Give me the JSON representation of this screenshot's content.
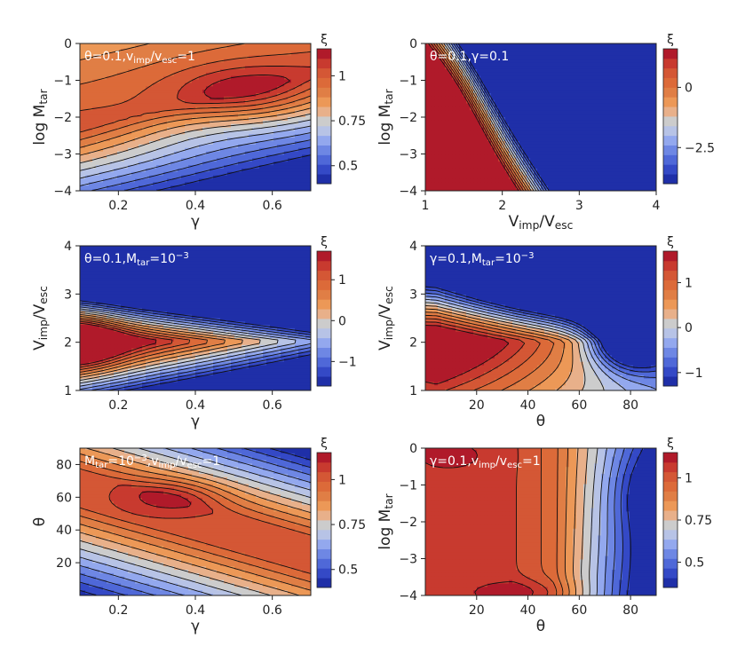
{
  "colors": {
    "palette": [
      "#1f2fa8",
      "#3449c6",
      "#4f68d8",
      "#6e87e4",
      "#93a8ee",
      "#b7c3e6",
      "#cccccc",
      "#e8b08a",
      "#ec9857",
      "#e07e45",
      "#dc6a39",
      "#d45735",
      "#c83a2f",
      "#b01a2a"
    ],
    "contour_line": "#111111",
    "in_plot_text": "#ffffff"
  },
  "chart_data": [
    {
      "type": "contour",
      "id": "p1",
      "annotation": "θ=0.1,v_imp/v_esc=1",
      "annotation_parts": [
        {
          "t": "θ=0.1,v"
        },
        {
          "t": "imp",
          "s": 1
        },
        {
          "t": "/v"
        },
        {
          "t": "esc",
          "s": 1
        },
        {
          "t": "=1"
        }
      ],
      "xlabel": "γ",
      "ylabel": "log M_tar",
      "ylabel_parts": [
        {
          "t": "log M"
        },
        {
          "t": "tar",
          "s": 1
        }
      ],
      "xlim": [
        0.1,
        0.7
      ],
      "ylim": [
        -4,
        0
      ],
      "xticks": [
        0.2,
        0.4,
        0.6
      ],
      "yticks": [
        0,
        -1,
        -2,
        -3,
        -4
      ],
      "xtick_labels": [
        "0.2",
        "0.4",
        "0.6"
      ],
      "ytick_labels": [
        "0",
        "−1",
        "−2",
        "−3",
        "−4"
      ],
      "field": "p1",
      "colorbar": {
        "label": "ξ",
        "range": [
          0.4,
          1.15
        ],
        "ticks": [
          1,
          0.75,
          0.5
        ],
        "tick_labels": [
          "1",
          "0.75",
          "0.5"
        ]
      }
    },
    {
      "type": "contour",
      "id": "p2",
      "annotation": "θ=0.1,γ=0.1",
      "annotation_parts": [
        {
          "t": "θ=0.1,γ=0.1"
        }
      ],
      "xlabel": "V_imp/V_esc",
      "xlabel_parts": [
        {
          "t": "V"
        },
        {
          "t": "imp",
          "s": 1
        },
        {
          "t": "/V"
        },
        {
          "t": "esc",
          "s": 1
        }
      ],
      "ylabel": "log M_tar",
      "ylabel_parts": [
        {
          "t": "log M"
        },
        {
          "t": "tar",
          "s": 1
        }
      ],
      "xlim": [
        1,
        4
      ],
      "ylim": [
        -4,
        0
      ],
      "xticks": [
        1,
        2,
        3,
        4
      ],
      "yticks": [
        0,
        -1,
        -2,
        -3,
        -4
      ],
      "xtick_labels": [
        "1",
        "2",
        "3",
        "4"
      ],
      "ytick_labels": [
        "0",
        "−1",
        "−2",
        "−3",
        "−4"
      ],
      "field": "p2",
      "colorbar": {
        "label": "ξ",
        "range": [
          -4,
          1.6
        ],
        "ticks": [
          0,
          -2.5
        ],
        "tick_labels": [
          "0",
          "−2.5"
        ]
      }
    },
    {
      "type": "contour",
      "id": "p3",
      "annotation": "θ=0.1,M_tar=10^-3",
      "annotation_parts": [
        {
          "t": "θ=0.1,M"
        },
        {
          "t": "tar",
          "s": 1
        },
        {
          "t": "=10"
        },
        {
          "t": "−3",
          "s": 2
        }
      ],
      "xlabel": "γ",
      "ylabel": "V_imp/V_esc",
      "ylabel_parts": [
        {
          "t": "V"
        },
        {
          "t": "imp",
          "s": 1
        },
        {
          "t": "/V"
        },
        {
          "t": "esc",
          "s": 1
        }
      ],
      "xlim": [
        0.1,
        0.7
      ],
      "ylim": [
        1,
        4
      ],
      "xticks": [
        0.2,
        0.4,
        0.6
      ],
      "yticks": [
        4,
        3,
        2,
        1
      ],
      "xtick_labels": [
        "0.2",
        "0.4",
        "0.6"
      ],
      "ytick_labels": [
        "4",
        "3",
        "2",
        "1"
      ],
      "field": "p3",
      "colorbar": {
        "label": "ξ",
        "range": [
          -1.6,
          1.7
        ],
        "ticks": [
          1,
          0,
          -1
        ],
        "tick_labels": [
          "1",
          "0",
          "−1"
        ]
      }
    },
    {
      "type": "contour",
      "id": "p4",
      "annotation": "γ=0.1,M_tar=10^-3",
      "annotation_parts": [
        {
          "t": "γ=0.1,M"
        },
        {
          "t": "tar",
          "s": 1
        },
        {
          "t": "=10"
        },
        {
          "t": "−3",
          "s": 2
        }
      ],
      "xlabel": "θ",
      "ylabel": "V_imp/V_esc",
      "ylabel_parts": [
        {
          "t": "V"
        },
        {
          "t": "imp",
          "s": 1
        },
        {
          "t": "/V"
        },
        {
          "t": "esc",
          "s": 1
        }
      ],
      "xlim": [
        0,
        90
      ],
      "ylim": [
        1,
        4
      ],
      "xticks": [
        20,
        40,
        60,
        80
      ],
      "yticks": [
        4,
        3,
        2,
        1
      ],
      "xtick_labels": [
        "20",
        "40",
        "60",
        "80"
      ],
      "ytick_labels": [
        "4",
        "3",
        "2",
        "1"
      ],
      "field": "p4",
      "colorbar": {
        "label": "ξ",
        "range": [
          -1.3,
          1.7
        ],
        "ticks": [
          1,
          0,
          -1
        ],
        "tick_labels": [
          "1",
          "0",
          "−1"
        ]
      }
    },
    {
      "type": "contour",
      "id": "p5",
      "annotation": "M_tar=10^-3,v_imp/v_esc=1",
      "annotation_parts": [
        {
          "t": "M"
        },
        {
          "t": "tar",
          "s": 1
        },
        {
          "t": "=10"
        },
        {
          "t": "−3",
          "s": 2
        },
        {
          "t": ",v"
        },
        {
          "t": "imp",
          "s": 1
        },
        {
          "t": "/v"
        },
        {
          "t": "esc",
          "s": 1
        },
        {
          "t": "=1"
        }
      ],
      "xlabel": "γ",
      "ylabel": "θ",
      "xlim": [
        0.1,
        0.7
      ],
      "ylim": [
        0,
        90
      ],
      "xticks": [
        0.2,
        0.4,
        0.6
      ],
      "yticks": [
        80,
        60,
        40,
        20
      ],
      "xtick_labels": [
        "0.2",
        "0.4",
        "0.6"
      ],
      "ytick_labels": [
        "80",
        "60",
        "40",
        "20"
      ],
      "field": "p5",
      "colorbar": {
        "label": "ξ",
        "range": [
          0.4,
          1.15
        ],
        "ticks": [
          1,
          0.75,
          0.5
        ],
        "tick_labels": [
          "1",
          "0.75",
          "0.5"
        ]
      }
    },
    {
      "type": "contour",
      "id": "p6",
      "annotation": "γ=0.1,v_imp/v_esc=1",
      "annotation_parts": [
        {
          "t": "γ=0.1,v"
        },
        {
          "t": "imp",
          "s": 1
        },
        {
          "t": "/v"
        },
        {
          "t": "esc",
          "s": 1
        },
        {
          "t": "=1"
        }
      ],
      "xlabel": "θ",
      "ylabel": "log M_tar",
      "ylabel_parts": [
        {
          "t": "log M"
        },
        {
          "t": "tar",
          "s": 1
        }
      ],
      "xlim": [
        0,
        90
      ],
      "ylim": [
        -4,
        0
      ],
      "xticks": [
        20,
        40,
        60,
        80
      ],
      "yticks": [
        0,
        -1,
        -2,
        -3,
        -4
      ],
      "xtick_labels": [
        "20",
        "40",
        "60",
        "80"
      ],
      "ytick_labels": [
        "0",
        "−1",
        "−2",
        "−3",
        "−4"
      ],
      "field": "p6",
      "colorbar": {
        "label": "ξ",
        "range": [
          0.35,
          1.15
        ],
        "ticks": [
          1,
          0.75,
          0.5
        ],
        "tick_labels": [
          "1",
          "0.75",
          "0.5"
        ]
      }
    }
  ]
}
